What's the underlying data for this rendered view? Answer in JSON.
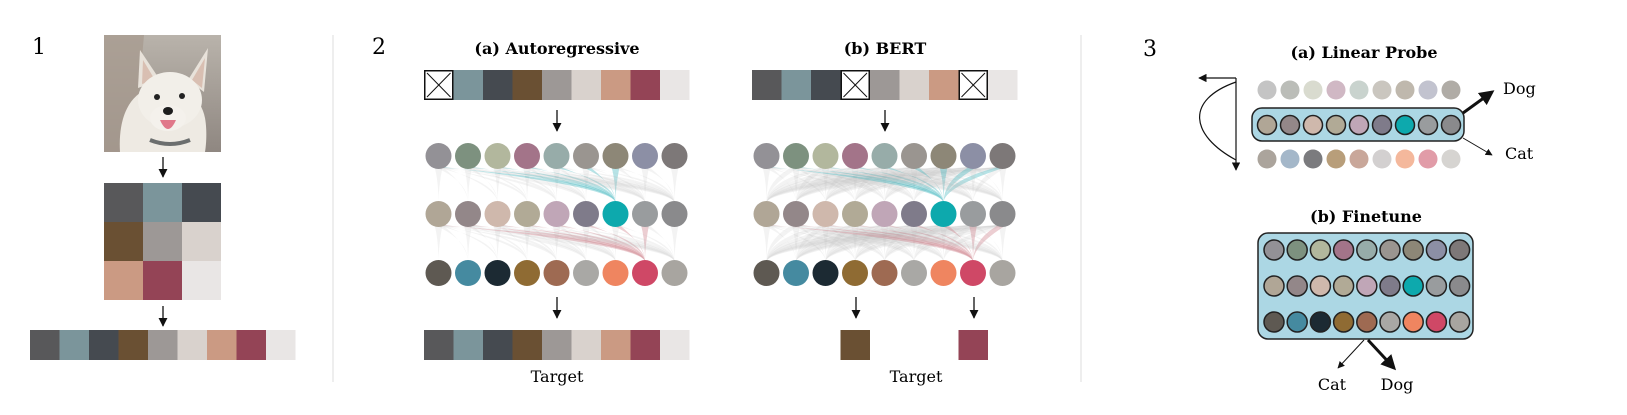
{
  "section_numbers": [
    "1",
    "2",
    "3"
  ],
  "palette": {
    "grid": [
      "#58585a",
      "#7b959b",
      "#454a50",
      "#6a5033",
      "#9d9896",
      "#d9d2cd",
      "#cb9a83",
      "#944456",
      "#e9e6e5"
    ]
  },
  "panel1": {
    "image": "dog photo (white dog)"
  },
  "panel2": {
    "autoregressive": {
      "title": "(a) Autoregressive",
      "input_masked": [
        0
      ],
      "target_label": "Target",
      "attention_color": "#2fb0b8",
      "attention_color_2": "#c9737f"
    },
    "bert": {
      "title": "(b) BERT",
      "input_masked": [
        3,
        7
      ],
      "target_label": "Target",
      "target_indices": [
        3,
        7
      ]
    },
    "layer1": [
      "#939196",
      "#7d917f",
      "#b2b79d",
      "#a37489",
      "#97aca9",
      "#9a9590",
      "#8d8777",
      "#8c8fa5",
      "#7d7878"
    ],
    "layer2": [
      "#b0a696",
      "#938789",
      "#cfb8ac",
      "#b1aa96",
      "#c0a6b7",
      "#7f7b8a",
      "#0da9ad",
      "#999c9e",
      "#8a8a8c"
    ],
    "layer3": [
      "#5e5952",
      "#458aa0",
      "#1c2a33",
      "#8f6b33",
      "#9e6a52",
      "#a9a8a5",
      "#ef8560",
      "#cf4866",
      "#a8a5a0"
    ]
  },
  "panel3": {
    "linear_probe": {
      "title": "(a) Linear Probe",
      "top_row": [
        "#c4c4c4",
        "#bbbdb8",
        "#d9dbcf",
        "#d0b8c4",
        "#c9d3ce",
        "#cac6bf",
        "#bfb8ad",
        "#c2c3cf",
        "#b0aca6"
      ],
      "mid_row": [
        "#b0a696",
        "#938789",
        "#cfb8ac",
        "#b1aa96",
        "#c0a6b7",
        "#7f7b8a",
        "#0da9ad",
        "#999c9e",
        "#8a8a8c"
      ],
      "bottom_row": [
        "#aba49c",
        "#a4b7c9",
        "#7b7b7e",
        "#b89e7a",
        "#c9a79a",
        "#d3d0d0",
        "#f4b89c",
        "#e19ca8",
        "#d6d4d1"
      ],
      "outputs": [
        "Dog",
        "Cat"
      ]
    },
    "finetune": {
      "title": "(b) Finetune",
      "outputs": [
        "Cat",
        "Dog"
      ]
    },
    "box_color": "#acd7e4"
  }
}
